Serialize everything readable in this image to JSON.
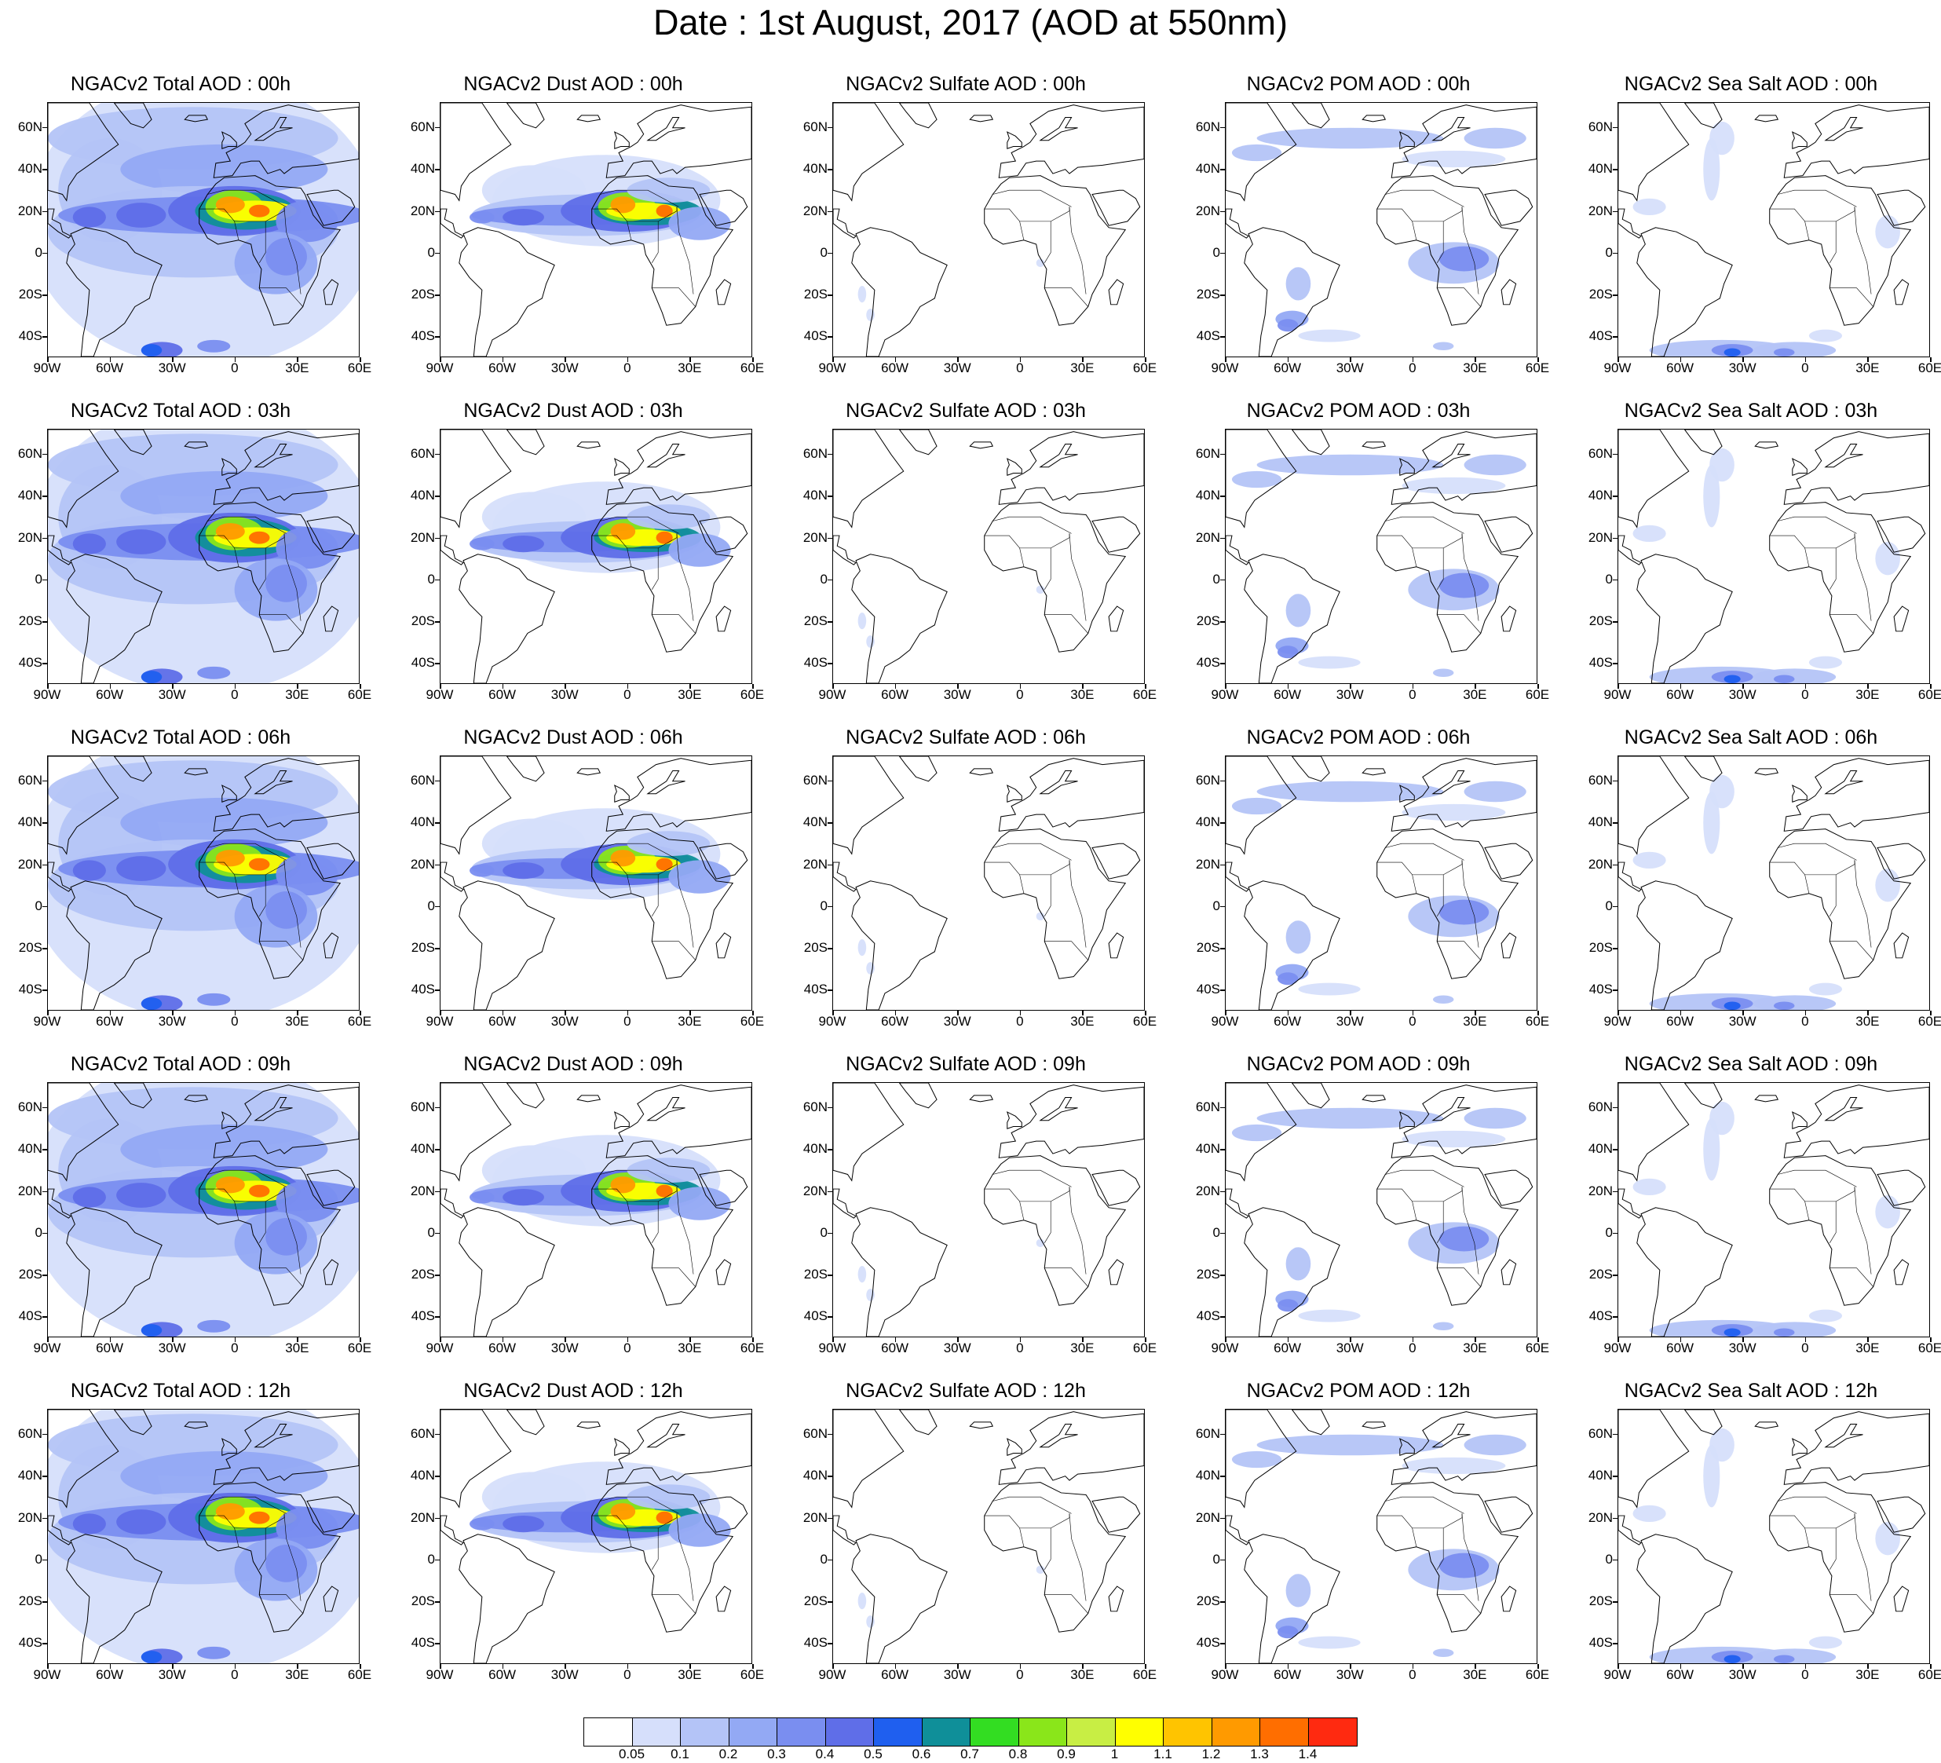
{
  "figure_title": "Date : 1st August, 2017 (AOD at 550nm)",
  "lat_labels": [
    "60N",
    "40N",
    "20N",
    "0",
    "20S",
    "40S"
  ],
  "lon_labels": [
    "90W",
    "60W",
    "30W",
    "0",
    "30E",
    "60E"
  ],
  "map_extent": {
    "lon_min": -90,
    "lon_max": 60,
    "lat_min": -50,
    "lat_max": 72
  },
  "panels": [
    {
      "title": "NGACv2 Total AOD : 00h",
      "species": "total"
    },
    {
      "title": "NGACv2 Dust AOD : 00h",
      "species": "dust"
    },
    {
      "title": "NGACv2 Sulfate AOD : 00h",
      "species": "sulfate"
    },
    {
      "title": "NGACv2 POM AOD : 00h",
      "species": "pom"
    },
    {
      "title": "NGACv2 Sea Salt AOD : 00h",
      "species": "seasalt"
    },
    {
      "title": "NGACv2 Total AOD : 03h",
      "species": "total"
    },
    {
      "title": "NGACv2 Dust AOD : 03h",
      "species": "dust"
    },
    {
      "title": "NGACv2 Sulfate AOD : 03h",
      "species": "sulfate"
    },
    {
      "title": "NGACv2 POM AOD : 03h",
      "species": "pom"
    },
    {
      "title": "NGACv2 Sea Salt AOD : 03h",
      "species": "seasalt"
    },
    {
      "title": "NGACv2 Total AOD : 06h",
      "species": "total"
    },
    {
      "title": "NGACv2 Dust AOD : 06h",
      "species": "dust"
    },
    {
      "title": "NGACv2 Sulfate AOD : 06h",
      "species": "sulfate"
    },
    {
      "title": "NGACv2 POM AOD : 06h",
      "species": "pom"
    },
    {
      "title": "NGACv2 Sea Salt AOD : 06h",
      "species": "seasalt"
    },
    {
      "title": "NGACv2 Total AOD : 09h",
      "species": "total"
    },
    {
      "title": "NGACv2 Dust AOD : 09h",
      "species": "dust"
    },
    {
      "title": "NGACv2 Sulfate AOD : 09h",
      "species": "sulfate"
    },
    {
      "title": "NGACv2 POM AOD : 09h",
      "species": "pom"
    },
    {
      "title": "NGACv2 Sea Salt  AOD : 09h",
      "species": "seasalt"
    },
    {
      "title": "NGACv2 Total AOD  : 12h",
      "species": "total"
    },
    {
      "title": "NGACv2 Dust AOD : 12h",
      "species": "dust"
    },
    {
      "title": "NGACv2 Sulfate AOD : 12h",
      "species": "sulfate"
    },
    {
      "title": "NGACv2 POM  AOD : 12h",
      "species": "pom"
    },
    {
      "title": "NGACv2 Sea Salt  AOD : 12h",
      "species": "seasalt"
    }
  ],
  "colorbar": {
    "labels": [
      "0.05",
      "0.1",
      "0.2",
      "0.3",
      "0.4",
      "0.5",
      "0.6",
      "0.7",
      "0.8",
      "0.9",
      "1",
      "1.1",
      "1.2",
      "1.3",
      "1.4"
    ],
    "colors": [
      "#ffffff",
      "#d6dffb",
      "#b4c4f7",
      "#93a9f4",
      "#7a8ef0",
      "#5f6ee8",
      "#1f5fef",
      "#0f8f99",
      "#33dd22",
      "#8ae61a",
      "#c8ee44",
      "#ffff00",
      "#ffc400",
      "#ff9a00",
      "#ff6e00",
      "#ff2a10"
    ]
  }
}
